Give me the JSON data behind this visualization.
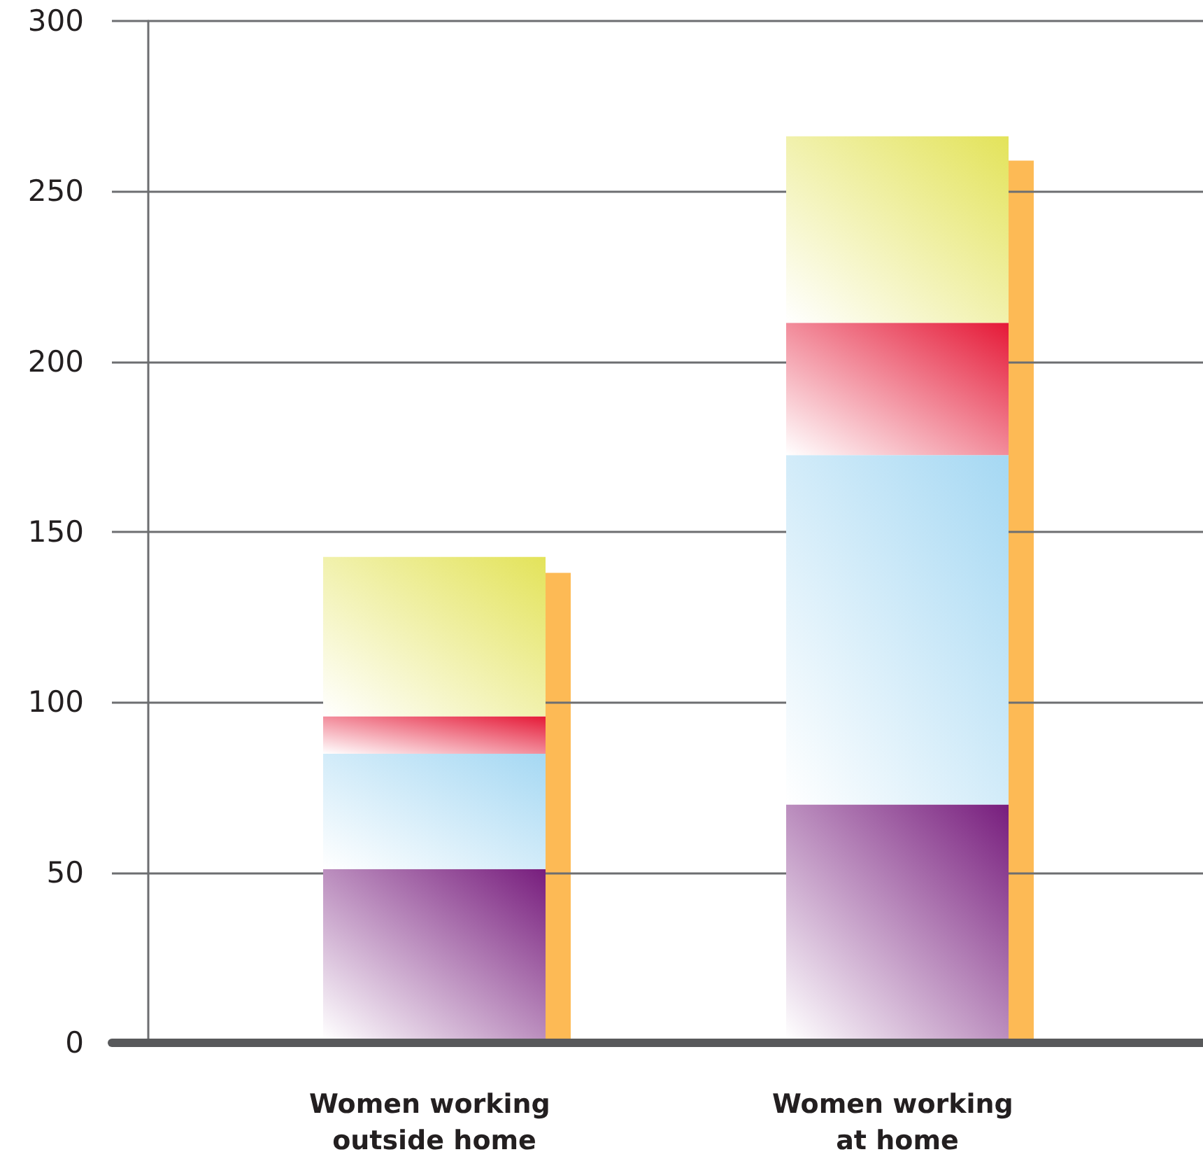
{
  "chart_data": [
    {
      "type": "bar",
      "categories": [
        "Women working outside home",
        "Women working at home"
      ],
      "series": [
        {
          "color": "#771d7d",
          "values": [
            50,
            69
          ]
        },
        {
          "color": "#a5d8f3",
          "values": [
            34,
            103
          ]
        },
        {
          "color": "#e51937",
          "values": [
            11,
            39
          ]
        },
        {
          "color": "#e3e35a",
          "values": [
            47,
            55
          ]
        }
      ],
      "stacked": true,
      "ylim": [
        0,
        300
      ],
      "yticks": [
        0,
        50,
        100,
        150,
        200,
        250,
        300
      ],
      "grid": "y"
    },
    {
      "type": "bar",
      "categories": [
        "Women working outside home",
        "Women working at home"
      ],
      "series": [
        {
          "color": "#fdba55",
          "values": [
            138,
            259
          ]
        }
      ],
      "ylim": [
        0,
        300
      ],
      "tick_labels": false
    }
  ]
}
